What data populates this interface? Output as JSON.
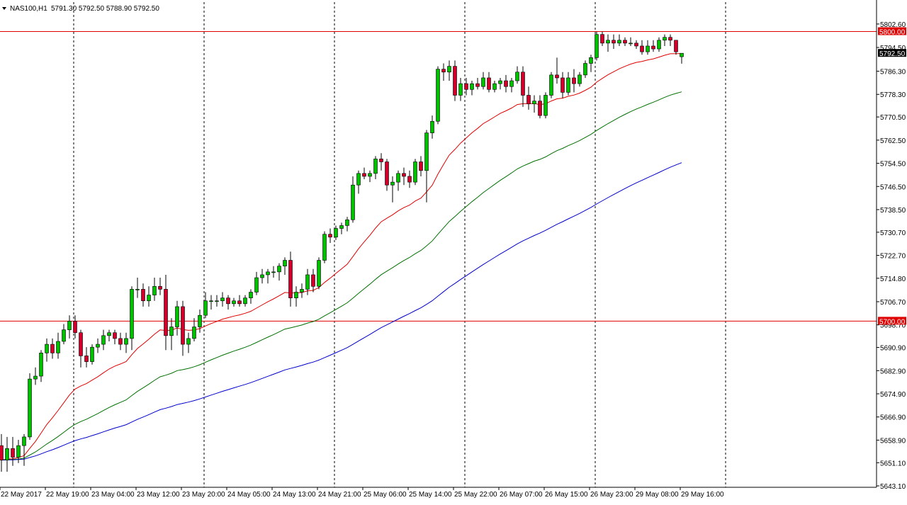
{
  "header": {
    "symbol": "NAS100,H1",
    "ohlc": "5791.30 5792.50 5788.90 5792.50"
  },
  "colors": {
    "bull": "#00c000",
    "bear": "#d0002a",
    "ma_fast": "#e00000",
    "ma_mid": "#007000",
    "ma_slow": "#0000cc",
    "hline": "#e00000",
    "price_label": "#000000"
  },
  "chart_data": {
    "type": "candlestick",
    "timeframe": "H1",
    "ylim": [
      5643.1,
      5806.0
    ],
    "y_ticks": [
      "5802.60",
      "5794.50",
      "5786.30",
      "5778.30",
      "5770.50",
      "5762.50",
      "5754.50",
      "5746.50",
      "5738.50",
      "5730.70",
      "5722.70",
      "5714.80",
      "5706.70",
      "5698.70",
      "5690.90",
      "5682.90",
      "5674.90",
      "5666.90",
      "5658.90",
      "5651.10",
      "5643.10"
    ],
    "x_ticks": [
      "22 May 2017",
      "22 May 19:00",
      "23 May 04:00",
      "23 May 12:00",
      "23 May 20:00",
      "24 May 05:00",
      "24 May 13:00",
      "24 May 21:00",
      "25 May 06:00",
      "25 May 14:00",
      "25 May 22:00",
      "26 May 07:00",
      "26 May 15:00",
      "26 May 23:00",
      "29 May 08:00",
      "29 May 16:00"
    ],
    "horizontal_lines": [
      {
        "value": 5800.0,
        "label": "5800.00"
      },
      {
        "value": 5700.0,
        "label": "5700.00"
      }
    ],
    "current_price": {
      "value": 5792.5,
      "label": "5792.50"
    },
    "candles": [
      {
        "o": 5657,
        "h": 5661,
        "l": 5648,
        "c": 5652
      },
      {
        "o": 5652,
        "h": 5660,
        "l": 5648,
        "c": 5656
      },
      {
        "o": 5656,
        "h": 5660,
        "l": 5650,
        "c": 5653
      },
      {
        "o": 5653,
        "h": 5659,
        "l": 5651,
        "c": 5657
      },
      {
        "o": 5657,
        "h": 5661,
        "l": 5650,
        "c": 5660
      },
      {
        "o": 5660,
        "h": 5682,
        "l": 5659,
        "c": 5680
      },
      {
        "o": 5680,
        "h": 5684,
        "l": 5678,
        "c": 5681
      },
      {
        "o": 5681,
        "h": 5690,
        "l": 5679,
        "c": 5689
      },
      {
        "o": 5689,
        "h": 5694,
        "l": 5686,
        "c": 5692
      },
      {
        "o": 5692,
        "h": 5694,
        "l": 5687,
        "c": 5689
      },
      {
        "o": 5689,
        "h": 5696,
        "l": 5687,
        "c": 5693
      },
      {
        "o": 5693,
        "h": 5699,
        "l": 5692,
        "c": 5697
      },
      {
        "o": 5697,
        "h": 5702,
        "l": 5694,
        "c": 5700
      },
      {
        "o": 5700,
        "h": 5702,
        "l": 5694,
        "c": 5696
      },
      {
        "o": 5696,
        "h": 5697,
        "l": 5684,
        "c": 5688
      },
      {
        "o": 5688,
        "h": 5691,
        "l": 5684,
        "c": 5686
      },
      {
        "o": 5686,
        "h": 5692,
        "l": 5685,
        "c": 5691
      },
      {
        "o": 5691,
        "h": 5694,
        "l": 5689,
        "c": 5692
      },
      {
        "o": 5692,
        "h": 5697,
        "l": 5690,
        "c": 5695
      },
      {
        "o": 5695,
        "h": 5697,
        "l": 5693,
        "c": 5696
      },
      {
        "o": 5696,
        "h": 5697,
        "l": 5692,
        "c": 5694
      },
      {
        "o": 5694,
        "h": 5696,
        "l": 5690,
        "c": 5692
      },
      {
        "o": 5692,
        "h": 5696,
        "l": 5689,
        "c": 5694
      },
      {
        "o": 5694,
        "h": 5712,
        "l": 5690,
        "c": 5711
      },
      {
        "o": 5711,
        "h": 5715,
        "l": 5708,
        "c": 5711
      },
      {
        "o": 5711,
        "h": 5713,
        "l": 5705,
        "c": 5707
      },
      {
        "o": 5707,
        "h": 5712,
        "l": 5705,
        "c": 5709
      },
      {
        "o": 5709,
        "h": 5715,
        "l": 5707,
        "c": 5712
      },
      {
        "o": 5712,
        "h": 5715,
        "l": 5709,
        "c": 5711
      },
      {
        "o": 5711,
        "h": 5716,
        "l": 5690,
        "c": 5695
      },
      {
        "o": 5695,
        "h": 5701,
        "l": 5690,
        "c": 5698
      },
      {
        "o": 5698,
        "h": 5707,
        "l": 5695,
        "c": 5705
      },
      {
        "o": 5705,
        "h": 5707,
        "l": 5688,
        "c": 5692
      },
      {
        "o": 5692,
        "h": 5696,
        "l": 5689,
        "c": 5694
      },
      {
        "o": 5694,
        "h": 5701,
        "l": 5693,
        "c": 5698
      },
      {
        "o": 5698,
        "h": 5704,
        "l": 5696,
        "c": 5702
      },
      {
        "o": 5702,
        "h": 5710,
        "l": 5701,
        "c": 5707
      },
      {
        "o": 5707,
        "h": 5709,
        "l": 5704,
        "c": 5707
      },
      {
        "o": 5707,
        "h": 5709,
        "l": 5705,
        "c": 5707
      },
      {
        "o": 5707,
        "h": 5710,
        "l": 5705,
        "c": 5708
      },
      {
        "o": 5708,
        "h": 5709,
        "l": 5704,
        "c": 5706
      },
      {
        "o": 5706,
        "h": 5708,
        "l": 5705,
        "c": 5707
      },
      {
        "o": 5707,
        "h": 5709,
        "l": 5705,
        "c": 5706
      },
      {
        "o": 5706,
        "h": 5709,
        "l": 5705,
        "c": 5708
      },
      {
        "o": 5708,
        "h": 5711,
        "l": 5706,
        "c": 5710
      },
      {
        "o": 5710,
        "h": 5717,
        "l": 5709,
        "c": 5715
      },
      {
        "o": 5715,
        "h": 5718,
        "l": 5713,
        "c": 5716
      },
      {
        "o": 5716,
        "h": 5718,
        "l": 5713,
        "c": 5717
      },
      {
        "o": 5717,
        "h": 5719,
        "l": 5715,
        "c": 5717
      },
      {
        "o": 5717,
        "h": 5720,
        "l": 5714,
        "c": 5719
      },
      {
        "o": 5719,
        "h": 5722,
        "l": 5716,
        "c": 5721
      },
      {
        "o": 5721,
        "h": 5724,
        "l": 5705,
        "c": 5708
      },
      {
        "o": 5708,
        "h": 5712,
        "l": 5705,
        "c": 5710
      },
      {
        "o": 5710,
        "h": 5713,
        "l": 5708,
        "c": 5711
      },
      {
        "o": 5711,
        "h": 5718,
        "l": 5709,
        "c": 5716
      },
      {
        "o": 5716,
        "h": 5718,
        "l": 5710,
        "c": 5712
      },
      {
        "o": 5712,
        "h": 5722,
        "l": 5711,
        "c": 5721
      },
      {
        "o": 5721,
        "h": 5731,
        "l": 5720,
        "c": 5730
      },
      {
        "o": 5730,
        "h": 5732,
        "l": 5727,
        "c": 5729
      },
      {
        "o": 5729,
        "h": 5733,
        "l": 5728,
        "c": 5732
      },
      {
        "o": 5732,
        "h": 5734,
        "l": 5730,
        "c": 5733
      },
      {
        "o": 5733,
        "h": 5736,
        "l": 5731,
        "c": 5735
      },
      {
        "o": 5735,
        "h": 5750,
        "l": 5734,
        "c": 5747
      },
      {
        "o": 5747,
        "h": 5752,
        "l": 5744,
        "c": 5751
      },
      {
        "o": 5751,
        "h": 5753,
        "l": 5749,
        "c": 5750
      },
      {
        "o": 5750,
        "h": 5752,
        "l": 5748,
        "c": 5751
      },
      {
        "o": 5751,
        "h": 5757,
        "l": 5749,
        "c": 5756
      },
      {
        "o": 5756,
        "h": 5758,
        "l": 5752,
        "c": 5755
      },
      {
        "o": 5755,
        "h": 5756,
        "l": 5745,
        "c": 5747
      },
      {
        "o": 5747,
        "h": 5750,
        "l": 5741,
        "c": 5748
      },
      {
        "o": 5748,
        "h": 5752,
        "l": 5745,
        "c": 5751
      },
      {
        "o": 5751,
        "h": 5753,
        "l": 5747,
        "c": 5750
      },
      {
        "o": 5750,
        "h": 5752,
        "l": 5746,
        "c": 5748
      },
      {
        "o": 5748,
        "h": 5756,
        "l": 5747,
        "c": 5755
      },
      {
        "o": 5755,
        "h": 5757,
        "l": 5750,
        "c": 5752
      },
      {
        "o": 5752,
        "h": 5766,
        "l": 5741,
        "c": 5765
      },
      {
        "o": 5765,
        "h": 5771,
        "l": 5763,
        "c": 5769
      },
      {
        "o": 5769,
        "h": 5788,
        "l": 5768,
        "c": 5787
      },
      {
        "o": 5787,
        "h": 5789,
        "l": 5783,
        "c": 5786
      },
      {
        "o": 5786,
        "h": 5790,
        "l": 5783,
        "c": 5788
      },
      {
        "o": 5788,
        "h": 5790,
        "l": 5776,
        "c": 5778
      },
      {
        "o": 5778,
        "h": 5784,
        "l": 5776,
        "c": 5782
      },
      {
        "o": 5782,
        "h": 5784,
        "l": 5778,
        "c": 5780
      },
      {
        "o": 5780,
        "h": 5783,
        "l": 5778,
        "c": 5782
      },
      {
        "o": 5782,
        "h": 5784,
        "l": 5780,
        "c": 5781
      },
      {
        "o": 5781,
        "h": 5786,
        "l": 5780,
        "c": 5784
      },
      {
        "o": 5784,
        "h": 5786,
        "l": 5779,
        "c": 5780
      },
      {
        "o": 5780,
        "h": 5783,
        "l": 5779,
        "c": 5782
      },
      {
        "o": 5782,
        "h": 5784,
        "l": 5780,
        "c": 5783
      },
      {
        "o": 5783,
        "h": 5785,
        "l": 5779,
        "c": 5781
      },
      {
        "o": 5781,
        "h": 5784,
        "l": 5779,
        "c": 5783
      },
      {
        "o": 5783,
        "h": 5788,
        "l": 5782,
        "c": 5786
      },
      {
        "o": 5786,
        "h": 5788,
        "l": 5774,
        "c": 5778
      },
      {
        "o": 5778,
        "h": 5781,
        "l": 5773,
        "c": 5775
      },
      {
        "o": 5775,
        "h": 5778,
        "l": 5772,
        "c": 5776
      },
      {
        "o": 5776,
        "h": 5778,
        "l": 5770,
        "c": 5771
      },
      {
        "o": 5771,
        "h": 5779,
        "l": 5770,
        "c": 5778
      },
      {
        "o": 5778,
        "h": 5786,
        "l": 5777,
        "c": 5785
      },
      {
        "o": 5785,
        "h": 5791,
        "l": 5782,
        "c": 5784
      },
      {
        "o": 5784,
        "h": 5786,
        "l": 5777,
        "c": 5779
      },
      {
        "o": 5779,
        "h": 5786,
        "l": 5778,
        "c": 5784
      },
      {
        "o": 5784,
        "h": 5787,
        "l": 5779,
        "c": 5782
      },
      {
        "o": 5782,
        "h": 5786,
        "l": 5781,
        "c": 5785
      },
      {
        "o": 5785,
        "h": 5790,
        "l": 5784,
        "c": 5789
      },
      {
        "o": 5789,
        "h": 5792,
        "l": 5786,
        "c": 5791
      },
      {
        "o": 5791,
        "h": 5800,
        "l": 5790,
        "c": 5799
      },
      {
        "o": 5799,
        "h": 5800,
        "l": 5795,
        "c": 5796
      },
      {
        "o": 5796,
        "h": 5799,
        "l": 5793,
        "c": 5797
      },
      {
        "o": 5797,
        "h": 5799,
        "l": 5794,
        "c": 5796
      },
      {
        "o": 5796,
        "h": 5799,
        "l": 5795,
        "c": 5797
      },
      {
        "o": 5797,
        "h": 5798,
        "l": 5795,
        "c": 5796
      },
      {
        "o": 5796,
        "h": 5798,
        "l": 5795,
        "c": 5796
      },
      {
        "o": 5796,
        "h": 5797,
        "l": 5794,
        "c": 5795
      },
      {
        "o": 5795,
        "h": 5797,
        "l": 5792,
        "c": 5793
      },
      {
        "o": 5793,
        "h": 5797,
        "l": 5792,
        "c": 5795
      },
      {
        "o": 5795,
        "h": 5797,
        "l": 5793,
        "c": 5794
      },
      {
        "o": 5794,
        "h": 5798,
        "l": 5793,
        "c": 5797
      },
      {
        "o": 5797,
        "h": 5799,
        "l": 5795,
        "c": 5798
      },
      {
        "o": 5798,
        "h": 5799,
        "l": 5795,
        "c": 5797
      },
      {
        "o": 5797,
        "h": 5797,
        "l": 5792,
        "c": 5793
      },
      {
        "o": 5791.3,
        "h": 5792.5,
        "l": 5788.9,
        "c": 5792.5
      }
    ]
  }
}
